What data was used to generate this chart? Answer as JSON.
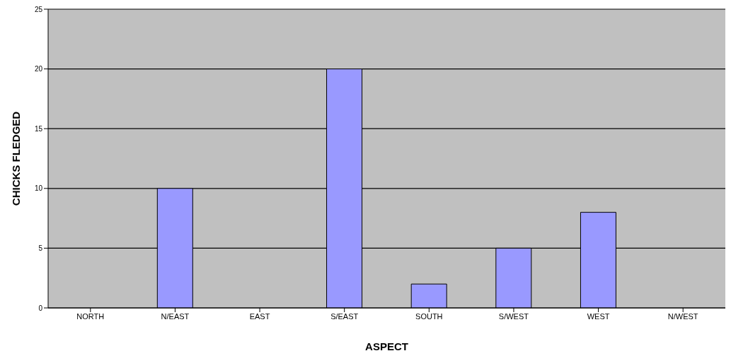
{
  "chart_data": {
    "type": "bar",
    "xlabel": "ASPECT",
    "ylabel": "CHICKS FLEDGED",
    "categories": [
      "NORTH",
      "N/EAST",
      "EAST",
      "S/EAST",
      "SOUTH",
      "S/WEST",
      "WEST",
      "N/WEST"
    ],
    "values": [
      0,
      10,
      0,
      20,
      2,
      5,
      8,
      0
    ],
    "color": "#9999ff",
    "ylim": [
      0,
      25
    ],
    "yticks": [
      0,
      5,
      10,
      15,
      20,
      25
    ],
    "grid": "y",
    "legend": false
  }
}
